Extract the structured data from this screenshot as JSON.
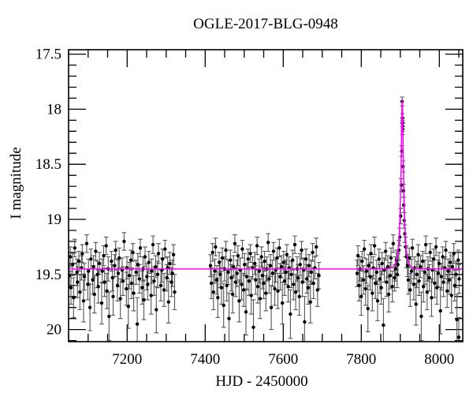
{
  "chart_data": {
    "type": "scatter",
    "title": "OGLE-2017-BLG-0948",
    "xlabel": "HJD - 2450000",
    "ylabel": "I magnitude",
    "xlim": [
      7050,
      8060
    ],
    "ylim": [
      17.46,
      20.11
    ],
    "y_axis_inverted": true,
    "grid": false,
    "legend": "none",
    "x_tick_values": [
      7200,
      7400,
      7600,
      7800,
      8000
    ],
    "x_tick_labels": [
      "7200",
      "7400",
      "7600",
      "7800",
      "8000"
    ],
    "x_minor_step": 50,
    "y_tick_values": [
      17.5,
      18,
      18.5,
      19,
      19.5,
      20
    ],
    "y_tick_labels": [
      "17.5",
      "18",
      "18.5",
      "19",
      "19.5",
      "20"
    ],
    "y_minor_step": 0.1,
    "colors": {
      "background": "#ffffff",
      "frame": "#000000",
      "point": "#000000",
      "errorbar": "#555555",
      "model_line": "#ff00ff"
    },
    "model": {
      "kind": "paczynski-microlensing",
      "t0": 7905.0,
      "tE": 8.0,
      "u0": 0.25,
      "baseline_mag": 19.45,
      "peak_mag": 17.92
    },
    "points_format": [
      "hjd_minus_2450000",
      "i_mag",
      "mag_error"
    ],
    "points": [
      [
        7052.1,
        19.51,
        0.11
      ],
      [
        7054.4,
        19.34,
        0.09
      ],
      [
        7056.1,
        19.62,
        0.15
      ],
      [
        7060.6,
        19.41,
        0.1
      ],
      [
        7062.8,
        19.71,
        0.18
      ],
      [
        7065.7,
        19.26,
        0.08
      ],
      [
        7071.5,
        19.48,
        0.12
      ],
      [
        7072.9,
        19.57,
        0.14
      ],
      [
        7076.5,
        19.38,
        0.09
      ],
      [
        7079.0,
        19.66,
        0.16
      ],
      [
        7083.1,
        19.44,
        0.11
      ],
      [
        7085.0,
        19.31,
        0.08
      ],
      [
        7088.3,
        19.74,
        0.19
      ],
      [
        7090.3,
        19.52,
        0.12
      ],
      [
        7096.5,
        19.22,
        0.08
      ],
      [
        7099.3,
        19.59,
        0.14
      ],
      [
        7100.9,
        19.47,
        0.11
      ],
      [
        7104.8,
        19.8,
        0.21
      ],
      [
        7107.2,
        19.36,
        0.09
      ],
      [
        7111.9,
        19.55,
        0.13
      ],
      [
        7114.0,
        19.43,
        0.1
      ],
      [
        7116.3,
        19.68,
        0.17
      ],
      [
        7119.4,
        19.29,
        0.08
      ],
      [
        7123.9,
        19.5,
        0.12
      ],
      [
        7126.1,
        19.61,
        0.15
      ],
      [
        7129.0,
        19.4,
        0.1
      ],
      [
        7134.8,
        19.76,
        0.19
      ],
      [
        7136.2,
        19.47,
        0.11
      ],
      [
        7139.8,
        19.33,
        0.09
      ],
      [
        7142.3,
        19.57,
        0.13
      ],
      [
        7146.4,
        19.24,
        0.08
      ],
      [
        7148.3,
        19.65,
        0.16
      ],
      [
        7151.6,
        19.45,
        0.11
      ],
      [
        7153.6,
        19.88,
        0.22
      ],
      [
        7159.8,
        19.38,
        0.09
      ],
      [
        7162.6,
        19.53,
        0.12
      ],
      [
        7164.2,
        19.7,
        0.17
      ],
      [
        7168.1,
        19.42,
        0.1
      ],
      [
        7170.5,
        19.28,
        0.08
      ],
      [
        7175.2,
        19.6,
        0.14
      ],
      [
        7177.3,
        19.49,
        0.12
      ],
      [
        7179.6,
        19.35,
        0.09
      ],
      [
        7182.7,
        19.72,
        0.18
      ],
      [
        7187.2,
        19.46,
        0.11
      ],
      [
        7189.4,
        19.56,
        0.13
      ],
      [
        7192.3,
        19.2,
        0.08
      ],
      [
        7198.1,
        19.63,
        0.15
      ],
      [
        7199.5,
        19.44,
        0.1
      ],
      [
        7203.1,
        19.79,
        0.2
      ],
      [
        7205.6,
        19.51,
        0.12
      ],
      [
        7209.7,
        19.37,
        0.09
      ],
      [
        7211.6,
        19.58,
        0.14
      ],
      [
        7214.9,
        19.3,
        0.08
      ],
      [
        7216.9,
        19.67,
        0.16
      ],
      [
        7223.1,
        19.48,
        0.11
      ],
      [
        7225.9,
        19.95,
        0.24
      ],
      [
        7227.5,
        19.41,
        0.1
      ],
      [
        7231.4,
        19.54,
        0.13
      ],
      [
        7233.8,
        19.26,
        0.08
      ],
      [
        7238.5,
        19.62,
        0.15
      ],
      [
        7240.6,
        19.45,
        0.11
      ],
      [
        7242.9,
        19.73,
        0.18
      ],
      [
        7246.0,
        19.34,
        0.09
      ],
      [
        7250.5,
        19.52,
        0.12
      ],
      [
        7252.7,
        19.59,
        0.14
      ],
      [
        7255.6,
        19.39,
        0.1
      ],
      [
        7261.4,
        19.69,
        0.17
      ],
      [
        7262.8,
        19.47,
        0.11
      ],
      [
        7266.4,
        19.23,
        0.08
      ],
      [
        7268.9,
        19.56,
        0.13
      ],
      [
        7273.0,
        19.43,
        0.1
      ],
      [
        7274.9,
        19.82,
        0.21
      ],
      [
        7278.2,
        19.5,
        0.12
      ],
      [
        7280.2,
        19.31,
        0.09
      ],
      [
        7286.4,
        19.6,
        0.14
      ],
      [
        7289.2,
        19.46,
        0.11
      ],
      [
        7290.8,
        19.36,
        0.09
      ],
      [
        7294.7,
        19.64,
        0.15
      ],
      [
        7297.1,
        19.27,
        0.08
      ],
      [
        7301.8,
        19.53,
        0.12
      ],
      [
        7303.9,
        19.44,
        0.1
      ],
      [
        7306.2,
        19.75,
        0.19
      ],
      [
        7309.3,
        19.4,
        0.1
      ],
      [
        7313.8,
        19.57,
        0.13
      ],
      [
        7316.0,
        19.49,
        0.12
      ],
      [
        7318.9,
        19.32,
        0.09
      ],
      [
        7321.7,
        19.66,
        0.16
      ],
      [
        7413.5,
        19.42,
        0.1
      ],
      [
        7415.8,
        19.58,
        0.14
      ],
      [
        7419.1,
        19.3,
        0.08
      ],
      [
        7421.2,
        19.66,
        0.16
      ],
      [
        7424.6,
        19.47,
        0.11
      ],
      [
        7426.5,
        19.25,
        0.08
      ],
      [
        7430.0,
        19.55,
        0.13
      ],
      [
        7432.4,
        19.71,
        0.18
      ],
      [
        7436.1,
        19.39,
        0.09
      ],
      [
        7438.2,
        19.5,
        0.12
      ],
      [
        7441.8,
        19.62,
        0.15
      ],
      [
        7444.0,
        19.35,
        0.09
      ],
      [
        7447.3,
        19.78,
        0.2
      ],
      [
        7449.8,
        19.45,
        0.11
      ],
      [
        7453.2,
        19.28,
        0.08
      ],
      [
        7455.5,
        19.6,
        0.14
      ],
      [
        7459.0,
        19.48,
        0.11
      ],
      [
        7461.1,
        19.9,
        0.23
      ],
      [
        7464.7,
        19.37,
        0.09
      ],
      [
        7466.8,
        19.53,
        0.12
      ],
      [
        7470.3,
        19.68,
        0.17
      ],
      [
        7472.5,
        19.43,
        0.1
      ],
      [
        7476.0,
        19.22,
        0.08
      ],
      [
        7478.1,
        19.57,
        0.13
      ],
      [
        7481.6,
        19.49,
        0.12
      ],
      [
        7483.9,
        19.33,
        0.09
      ],
      [
        7487.2,
        19.74,
        0.19
      ],
      [
        7489.5,
        19.46,
        0.11
      ],
      [
        7493.1,
        19.59,
        0.14
      ],
      [
        7495.2,
        19.27,
        0.08
      ],
      [
        7498.6,
        19.64,
        0.15
      ],
      [
        7500.9,
        19.41,
        0.1
      ],
      [
        7504.4,
        19.84,
        0.21
      ],
      [
        7506.5,
        19.52,
        0.12
      ],
      [
        7510.0,
        19.36,
        0.09
      ],
      [
        7512.3,
        19.56,
        0.13
      ],
      [
        7515.8,
        19.31,
        0.08
      ],
      [
        7518.0,
        19.69,
        0.17
      ],
      [
        7521.4,
        19.44,
        0.1
      ],
      [
        7523.7,
        19.98,
        0.25
      ],
      [
        7527.2,
        19.4,
        0.1
      ],
      [
        7529.4,
        19.55,
        0.13
      ],
      [
        7532.9,
        19.24,
        0.08
      ],
      [
        7535.1,
        19.61,
        0.15
      ],
      [
        7538.6,
        19.47,
        0.11
      ],
      [
        7540.8,
        19.72,
        0.18
      ],
      [
        7544.3,
        19.34,
        0.09
      ],
      [
        7546.5,
        19.51,
        0.12
      ],
      [
        7550.0,
        19.58,
        0.14
      ],
      [
        7552.2,
        19.38,
        0.09
      ],
      [
        7555.7,
        19.67,
        0.16
      ],
      [
        7557.9,
        19.45,
        0.11
      ],
      [
        7561.4,
        19.21,
        0.08
      ],
      [
        7563.6,
        19.54,
        0.13
      ],
      [
        7567.1,
        19.42,
        0.1
      ],
      [
        7569.3,
        19.8,
        0.2
      ],
      [
        7572.8,
        19.49,
        0.12
      ],
      [
        7575.0,
        19.29,
        0.08
      ],
      [
        7578.5,
        19.63,
        0.15
      ],
      [
        7580.7,
        19.46,
        0.11
      ],
      [
        7584.2,
        19.35,
        0.09
      ],
      [
        7586.4,
        19.65,
        0.16
      ],
      [
        7589.9,
        19.26,
        0.08
      ],
      [
        7592.1,
        19.52,
        0.12
      ],
      [
        7595.6,
        19.43,
        0.1
      ],
      [
        7597.8,
        19.76,
        0.19
      ],
      [
        7601.3,
        19.39,
        0.1
      ],
      [
        7603.5,
        19.56,
        0.13
      ],
      [
        7607.0,
        19.48,
        0.11
      ],
      [
        7609.2,
        19.32,
        0.09
      ],
      [
        7612.7,
        19.61,
        0.14
      ],
      [
        7614.9,
        19.44,
        0.1
      ],
      [
        7618.4,
        19.86,
        0.22
      ],
      [
        7620.6,
        19.5,
        0.12
      ],
      [
        7624.1,
        19.37,
        0.09
      ],
      [
        7626.3,
        19.59,
        0.14
      ],
      [
        7629.8,
        19.23,
        0.08
      ],
      [
        7632.0,
        19.66,
        0.16
      ],
      [
        7635.5,
        19.45,
        0.11
      ],
      [
        7637.7,
        19.53,
        0.12
      ],
      [
        7641.2,
        19.7,
        0.17
      ],
      [
        7643.4,
        19.41,
        0.1
      ],
      [
        7646.9,
        19.28,
        0.08
      ],
      [
        7649.1,
        19.57,
        0.13
      ],
      [
        7652.6,
        19.46,
        0.11
      ],
      [
        7654.8,
        19.93,
        0.23
      ],
      [
        7658.3,
        19.36,
        0.09
      ],
      [
        7660.5,
        19.54,
        0.13
      ],
      [
        7664.0,
        19.62,
        0.15
      ],
      [
        7666.2,
        19.42,
        0.1
      ],
      [
        7669.7,
        19.75,
        0.19
      ],
      [
        7671.9,
        19.48,
        0.11
      ],
      [
        7675.4,
        19.3,
        0.08
      ],
      [
        7677.6,
        19.58,
        0.14
      ],
      [
        7681.1,
        19.44,
        0.1
      ],
      [
        7684.6,
        19.25,
        0.08
      ],
      [
        7687.9,
        19.64,
        0.15
      ],
      [
        7691.3,
        19.51,
        0.12
      ],
      [
        7789.4,
        19.49,
        0.12
      ],
      [
        7791.6,
        19.33,
        0.09
      ],
      [
        7794.2,
        19.6,
        0.14
      ],
      [
        7796.5,
        19.45,
        0.11
      ],
      [
        7799.8,
        19.7,
        0.17
      ],
      [
        7802.0,
        19.38,
        0.09
      ],
      [
        7805.5,
        19.55,
        0.13
      ],
      [
        7807.7,
        19.27,
        0.08
      ],
      [
        7811.2,
        19.63,
        0.15
      ],
      [
        7813.4,
        19.47,
        0.11
      ],
      [
        7816.9,
        19.81,
        0.21
      ],
      [
        7819.1,
        19.42,
        0.1
      ],
      [
        7822.6,
        19.52,
        0.12
      ],
      [
        7824.8,
        19.31,
        0.08
      ],
      [
        7828.3,
        19.67,
        0.16
      ],
      [
        7830.5,
        19.44,
        0.1
      ],
      [
        7834.0,
        19.24,
        0.08
      ],
      [
        7836.2,
        19.58,
        0.14
      ],
      [
        7839.7,
        19.48,
        0.11
      ],
      [
        7841.9,
        19.74,
        0.18
      ],
      [
        7845.4,
        19.36,
        0.09
      ],
      [
        7847.6,
        19.54,
        0.13
      ],
      [
        7851.1,
        19.62,
        0.15
      ],
      [
        7853.3,
        19.4,
        0.1
      ],
      [
        7856.8,
        19.96,
        0.24
      ],
      [
        7859.0,
        19.46,
        0.11
      ],
      [
        7862.5,
        19.29,
        0.08
      ],
      [
        7864.7,
        19.57,
        0.13
      ],
      [
        7868.2,
        19.43,
        0.1
      ],
      [
        7870.4,
        19.68,
        0.16
      ],
      [
        7873.9,
        19.51,
        0.12
      ],
      [
        7876.1,
        19.35,
        0.09
      ],
      [
        7879.6,
        19.61,
        0.14
      ],
      [
        7881.8,
        19.22,
        0.08
      ],
      [
        7885.3,
        19.53,
        0.12
      ],
      [
        7887.5,
        19.45,
        0.11
      ],
      [
        7890.3,
        19.37,
        0.09
      ],
      [
        7892.0,
        19.5,
        0.12
      ],
      [
        7893.8,
        19.41,
        0.1
      ],
      [
        7896.4,
        19.28,
        0.09
      ],
      [
        7898.6,
        19.16,
        0.08
      ],
      [
        7900.9,
        18.97,
        0.07
      ],
      [
        7902.4,
        18.69,
        0.06
      ],
      [
        7903.6,
        18.38,
        0.05
      ],
      [
        7904.7,
        17.93,
        0.04
      ],
      [
        7905.4,
        18.08,
        0.04
      ],
      [
        7905.6,
        18.12,
        0.04
      ],
      [
        7905.8,
        18.15,
        0.05
      ],
      [
        7906.0,
        18.18,
        0.05
      ],
      [
        7907.1,
        18.52,
        0.05
      ],
      [
        7908.2,
        18.74,
        0.06
      ],
      [
        7909.0,
        18.87,
        0.07
      ],
      [
        7910.1,
        19.01,
        0.07
      ],
      [
        7911.6,
        19.13,
        0.08
      ],
      [
        7913.4,
        19.25,
        0.09
      ],
      [
        7915.9,
        19.34,
        0.1
      ],
      [
        7918.3,
        19.42,
        0.1
      ],
      [
        7920.5,
        19.55,
        0.13
      ],
      [
        7923.1,
        19.35,
        0.09
      ],
      [
        7925.3,
        19.64,
        0.15
      ],
      [
        7928.8,
        19.47,
        0.11
      ],
      [
        7931.0,
        19.26,
        0.08
      ],
      [
        7934.5,
        19.59,
        0.14
      ],
      [
        7936.7,
        19.44,
        0.1
      ],
      [
        7940.2,
        19.77,
        0.19
      ],
      [
        7942.4,
        19.5,
        0.12
      ],
      [
        7945.9,
        19.32,
        0.09
      ],
      [
        7948.1,
        19.56,
        0.13
      ],
      [
        7951.6,
        19.43,
        0.1
      ],
      [
        7953.8,
        19.88,
        0.22
      ],
      [
        7957.3,
        19.38,
        0.09
      ],
      [
        7959.5,
        19.61,
        0.14
      ],
      [
        7963.0,
        19.48,
        0.11
      ],
      [
        7965.2,
        19.23,
        0.08
      ],
      [
        7968.7,
        19.66,
        0.16
      ],
      [
        7970.9,
        19.45,
        0.11
      ],
      [
        7974.4,
        19.53,
        0.12
      ],
      [
        7976.6,
        19.3,
        0.08
      ],
      [
        7980.1,
        19.71,
        0.17
      ],
      [
        7982.3,
        19.46,
        0.11
      ],
      [
        7985.8,
        19.36,
        0.09
      ],
      [
        7988.0,
        19.58,
        0.13
      ],
      [
        7991.5,
        19.25,
        0.08
      ],
      [
        7993.7,
        19.62,
        0.15
      ],
      [
        7997.2,
        19.49,
        0.12
      ],
      [
        7999.4,
        19.4,
        0.1
      ],
      [
        8002.9,
        19.83,
        0.21
      ],
      [
        8005.1,
        19.52,
        0.12
      ],
      [
        8008.6,
        19.34,
        0.09
      ],
      [
        8010.8,
        19.57,
        0.13
      ],
      [
        8014.3,
        19.44,
        0.1
      ],
      [
        8016.5,
        19.28,
        0.08
      ],
      [
        8020.0,
        19.65,
        0.15
      ],
      [
        8022.2,
        19.47,
        0.11
      ],
      [
        8025.7,
        19.55,
        0.13
      ],
      [
        8027.9,
        19.39,
        0.09
      ],
      [
        8031.4,
        19.69,
        0.16
      ],
      [
        8033.6,
        19.43,
        0.1
      ],
      [
        8037.1,
        19.31,
        0.09
      ],
      [
        8039.3,
        19.6,
        0.14
      ],
      [
        8042.8,
        19.5,
        0.12
      ],
      [
        8045.0,
        19.91,
        0.23
      ],
      [
        8048.5,
        19.37,
        0.09
      ],
      [
        8049.9,
        20.07,
        0.18
      ],
      [
        8050.7,
        19.54,
        0.13
      ]
    ]
  }
}
